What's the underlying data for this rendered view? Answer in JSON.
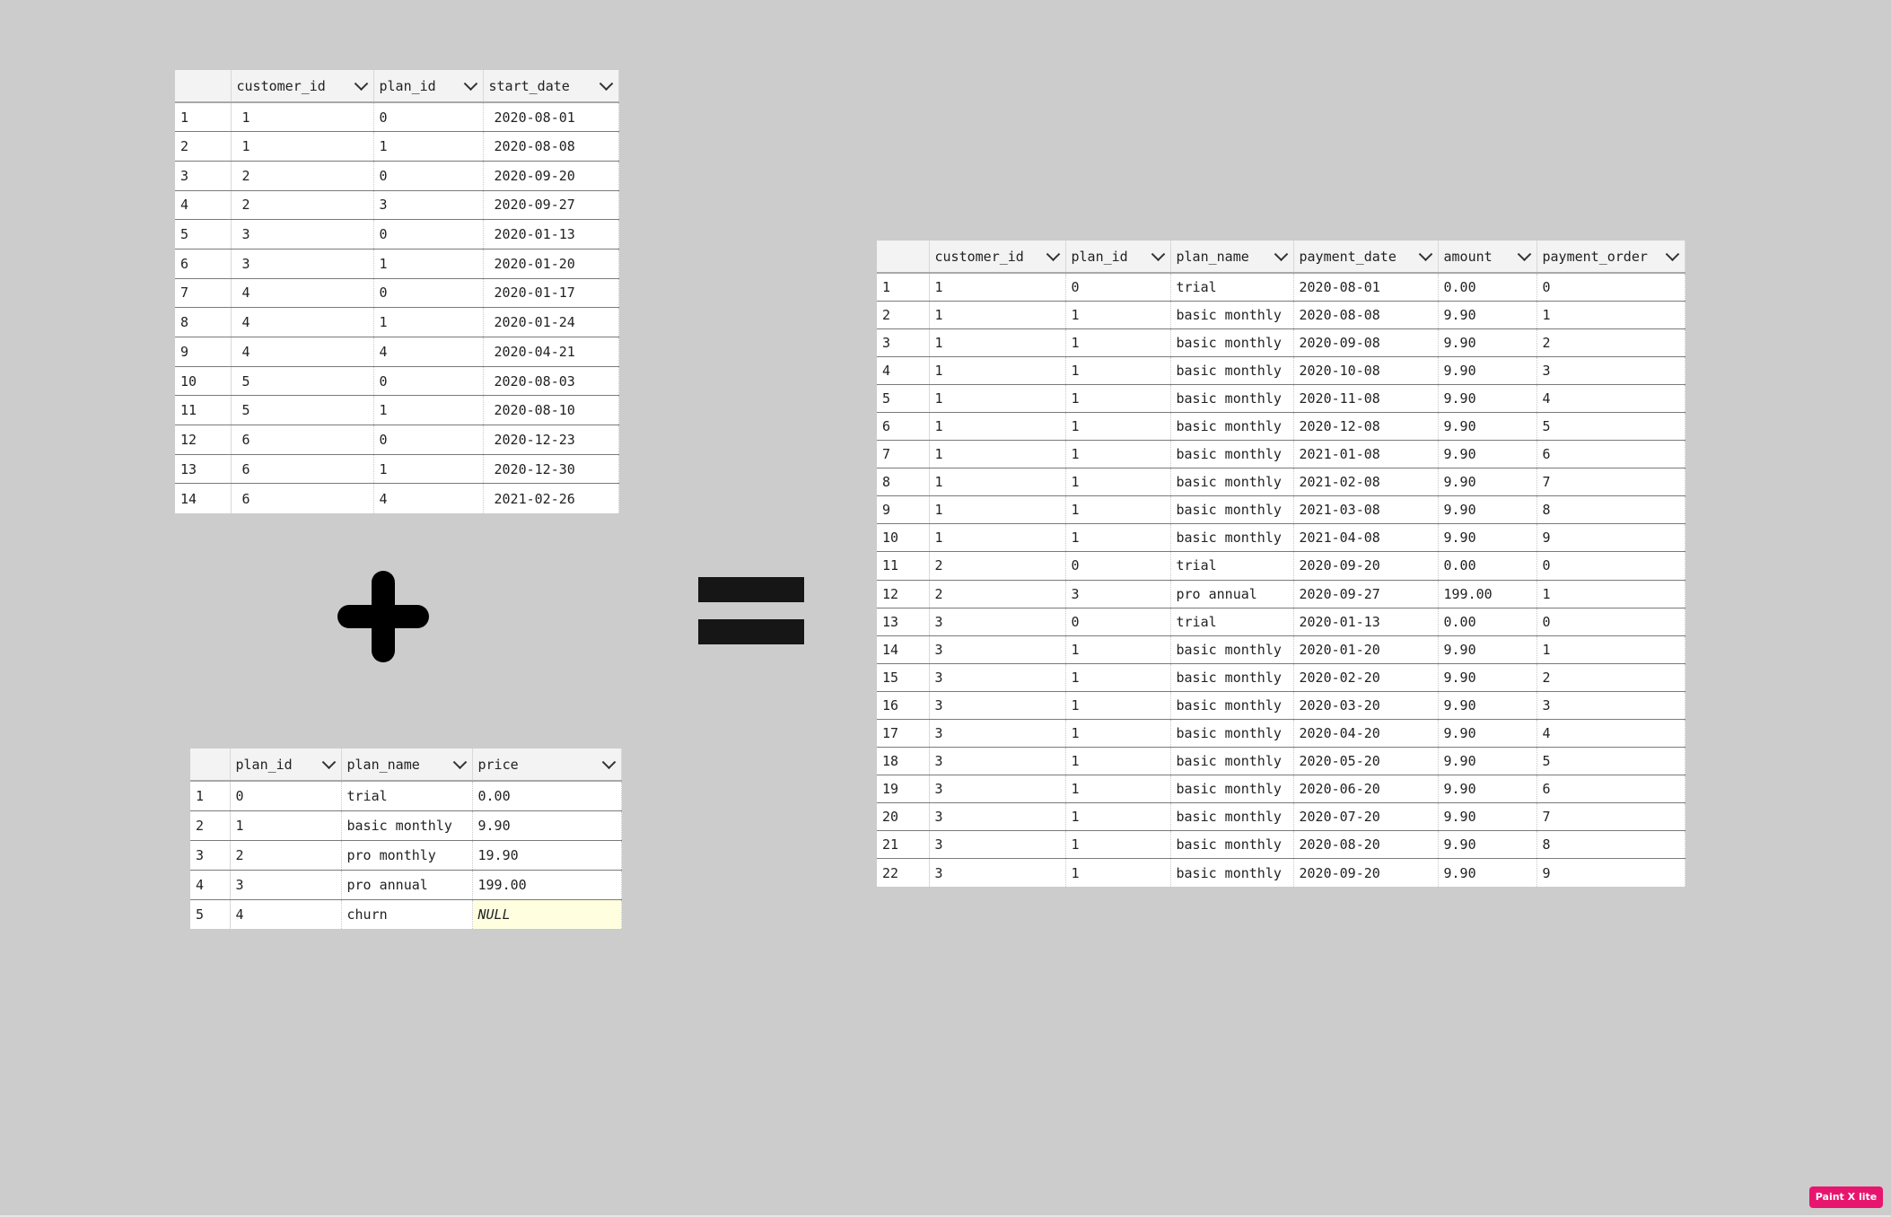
{
  "subscriptions_table": {
    "columns": [
      "customer_id",
      "plan_id",
      "start_date"
    ],
    "rows": [
      [
        "1",
        "1",
        "0",
        "2020-08-01"
      ],
      [
        "2",
        "1",
        "1",
        "2020-08-08"
      ],
      [
        "3",
        "2",
        "0",
        "2020-09-20"
      ],
      [
        "4",
        "2",
        "3",
        "2020-09-27"
      ],
      [
        "5",
        "3",
        "0",
        "2020-01-13"
      ],
      [
        "6",
        "3",
        "1",
        "2020-01-20"
      ],
      [
        "7",
        "4",
        "0",
        "2020-01-17"
      ],
      [
        "8",
        "4",
        "1",
        "2020-01-24"
      ],
      [
        "9",
        "4",
        "4",
        "2020-04-21"
      ],
      [
        "10",
        "5",
        "0",
        "2020-08-03"
      ],
      [
        "11",
        "5",
        "1",
        "2020-08-10"
      ],
      [
        "12",
        "6",
        "0",
        "2020-12-23"
      ],
      [
        "13",
        "6",
        "1",
        "2020-12-30"
      ],
      [
        "14",
        "6",
        "4",
        "2021-02-26"
      ]
    ]
  },
  "plans_table": {
    "columns": [
      "plan_id",
      "plan_name",
      "price"
    ],
    "rows": [
      [
        "1",
        "0",
        "trial",
        "0.00"
      ],
      [
        "2",
        "1",
        "basic monthly",
        "9.90"
      ],
      [
        "3",
        "2",
        "pro monthly",
        "19.90"
      ],
      [
        "4",
        "3",
        "pro annual",
        "199.00"
      ],
      [
        "5",
        "4",
        "churn",
        "NULL"
      ]
    ],
    "null_color": "#ffffe0"
  },
  "result_table": {
    "columns": [
      "customer_id",
      "plan_id",
      "plan_name",
      "payment_date",
      "amount",
      "payment_order"
    ],
    "rows": [
      [
        "1",
        "1",
        "0",
        "trial",
        "2020-08-01",
        "0.00",
        "0"
      ],
      [
        "2",
        "1",
        "1",
        "basic monthly",
        "2020-08-08",
        "9.90",
        "1"
      ],
      [
        "3",
        "1",
        "1",
        "basic monthly",
        "2020-09-08",
        "9.90",
        "2"
      ],
      [
        "4",
        "1",
        "1",
        "basic monthly",
        "2020-10-08",
        "9.90",
        "3"
      ],
      [
        "5",
        "1",
        "1",
        "basic monthly",
        "2020-11-08",
        "9.90",
        "4"
      ],
      [
        "6",
        "1",
        "1",
        "basic monthly",
        "2020-12-08",
        "9.90",
        "5"
      ],
      [
        "7",
        "1",
        "1",
        "basic monthly",
        "2021-01-08",
        "9.90",
        "6"
      ],
      [
        "8",
        "1",
        "1",
        "basic monthly",
        "2021-02-08",
        "9.90",
        "7"
      ],
      [
        "9",
        "1",
        "1",
        "basic monthly",
        "2021-03-08",
        "9.90",
        "8"
      ],
      [
        "10",
        "1",
        "1",
        "basic monthly",
        "2021-04-08",
        "9.90",
        "9"
      ],
      [
        "11",
        "2",
        "0",
        "trial",
        "2020-09-20",
        "0.00",
        "0"
      ],
      [
        "12",
        "2",
        "3",
        "pro annual",
        "2020-09-27",
        "199.00",
        "1"
      ],
      [
        "13",
        "3",
        "0",
        "trial",
        "2020-01-13",
        "0.00",
        "0"
      ],
      [
        "14",
        "3",
        "1",
        "basic monthly",
        "2020-01-20",
        "9.90",
        "1"
      ],
      [
        "15",
        "3",
        "1",
        "basic monthly",
        "2020-02-20",
        "9.90",
        "2"
      ],
      [
        "16",
        "3",
        "1",
        "basic monthly",
        "2020-03-20",
        "9.90",
        "3"
      ],
      [
        "17",
        "3",
        "1",
        "basic monthly",
        "2020-04-20",
        "9.90",
        "4"
      ],
      [
        "18",
        "3",
        "1",
        "basic monthly",
        "2020-05-20",
        "9.90",
        "5"
      ],
      [
        "19",
        "3",
        "1",
        "basic monthly",
        "2020-06-20",
        "9.90",
        "6"
      ],
      [
        "20",
        "3",
        "1",
        "basic monthly",
        "2020-07-20",
        "9.90",
        "7"
      ],
      [
        "21",
        "3",
        "1",
        "basic monthly",
        "2020-08-20",
        "9.90",
        "8"
      ],
      [
        "22",
        "3",
        "1",
        "basic monthly",
        "2020-09-20",
        "9.90",
        "9"
      ]
    ]
  },
  "operators": {
    "plus_icon": "plus-sign",
    "equals_icon": "equals-sign"
  },
  "watermark": {
    "label": "Paint X lite",
    "color": "#e8156f"
  },
  "colors": {
    "background": "#cccccc",
    "header_bg": "#f3f3f3",
    "grid_bg": "#ffffff"
  }
}
